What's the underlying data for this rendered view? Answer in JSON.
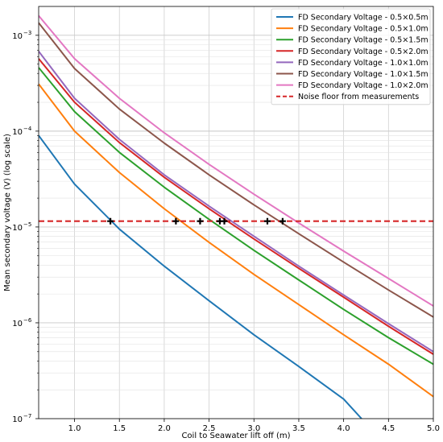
{
  "chart_data": {
    "type": "line",
    "title": "",
    "xlabel": "Coil to Seawater lift off (m)",
    "ylabel": "Mean secondary voltage (V) (log scale)",
    "xlim": [
      0.6,
      5.0
    ],
    "ylim": [
      1e-07,
      0.002
    ],
    "yscale": "log",
    "grid": true,
    "legend_position": "top-right",
    "x_ticks": [
      1.0,
      1.5,
      2.0,
      2.5,
      3.0,
      3.5,
      4.0,
      4.5,
      5.0
    ],
    "x_tick_labels": [
      "1.0",
      "1.5",
      "2.0",
      "2.5",
      "3.0",
      "3.5",
      "4.0",
      "4.5",
      "5.0"
    ],
    "y_ticks": [
      1e-07,
      1e-06,
      1e-05,
      0.0001,
      0.001
    ],
    "y_tick_labels": [
      "10",
      "10",
      "10",
      "10",
      "10"
    ],
    "y_tick_exponents": [
      "−7",
      "−6",
      "−5",
      "−4",
      "−3"
    ],
    "series": [
      {
        "name": "FD Secondary Voltage - 0.5×0.5m",
        "color": "#1f77b4",
        "x": [
          0.6,
          1.0,
          1.5,
          2.0,
          2.5,
          3.0,
          3.5,
          4.0,
          4.2
        ],
        "y": [
          9e-05,
          2.8e-05,
          9.5e-06,
          3.9e-06,
          1.7e-06,
          7.5e-07,
          3.5e-07,
          1.6e-07,
          1e-07
        ]
      },
      {
        "name": "FD Secondary Voltage - 0.5×1.0m",
        "color": "#ff7f0e",
        "x": [
          0.6,
          1.0,
          1.5,
          2.0,
          2.5,
          3.0,
          3.5,
          4.0,
          4.5,
          5.0
        ],
        "y": [
          0.00031,
          0.0001,
          3.7e-05,
          1.55e-05,
          6.9e-06,
          3.2e-06,
          1.55e-06,
          7.5e-07,
          3.7e-07,
          1.7e-07
        ]
      },
      {
        "name": "FD Secondary Voltage - 0.5×1.5m",
        "color": "#2ca02c",
        "x": [
          0.6,
          1.0,
          1.5,
          2.0,
          2.5,
          3.0,
          3.5,
          4.0,
          4.5,
          5.0
        ],
        "y": [
          0.00046,
          0.00016,
          6e-05,
          2.6e-05,
          1.2e-05,
          5.7e-06,
          2.8e-06,
          1.38e-06,
          7e-07,
          3.7e-07
        ]
      },
      {
        "name": "FD Secondary Voltage - 0.5×2.0m",
        "color": "#d62728",
        "x": [
          0.6,
          1.0,
          1.5,
          2.0,
          2.5,
          3.0,
          3.5,
          4.0,
          4.5,
          5.0
        ],
        "y": [
          0.00057,
          0.0002,
          7.6e-05,
          3.3e-05,
          1.55e-05,
          7.5e-06,
          3.7e-06,
          1.85e-06,
          9.2e-07,
          4.7e-07
        ]
      },
      {
        "name": "FD Secondary Voltage - 1.0×1.0m",
        "color": "#9467bd",
        "x": [
          0.6,
          1.0,
          1.5,
          2.0,
          2.5,
          3.0,
          3.5,
          4.0,
          4.5,
          5.0
        ],
        "y": [
          0.00068,
          0.00022,
          8.2e-05,
          3.5e-05,
          1.65e-05,
          8e-06,
          3.9e-06,
          1.95e-06,
          9.8e-07,
          5e-07
        ]
      },
      {
        "name": "FD Secondary Voltage - 1.0×1.5m",
        "color": "#8c564b",
        "x": [
          0.6,
          1.0,
          1.5,
          2.0,
          2.5,
          3.0,
          3.5,
          4.0,
          4.5,
          5.0
        ],
        "y": [
          0.00135,
          0.00045,
          0.00017,
          7.5e-05,
          3.5e-05,
          1.7e-05,
          8.5e-06,
          4.3e-06,
          2.2e-06,
          1.15e-06
        ]
      },
      {
        "name": "FD Secondary Voltage - 1.0×2.0m",
        "color": "#e377c2",
        "x": [
          0.6,
          1.0,
          1.5,
          2.0,
          2.5,
          3.0,
          3.5,
          4.0,
          4.5,
          5.0
        ],
        "y": [
          0.0016,
          0.00057,
          0.00022,
          9.6e-05,
          4.5e-05,
          2.2e-05,
          1.1e-05,
          5.6e-06,
          2.9e-06,
          1.5e-06
        ]
      }
    ],
    "noise_floor": {
      "name": "Noise floor from measurements",
      "color": "#d62728",
      "value": 1.15e-05
    },
    "intersections": [
      {
        "x": 1.4,
        "y": 1.15e-05
      },
      {
        "x": 2.13,
        "y": 1.15e-05
      },
      {
        "x": 2.4,
        "y": 1.15e-05
      },
      {
        "x": 2.62,
        "y": 1.15e-05
      },
      {
        "x": 2.67,
        "y": 1.15e-05
      },
      {
        "x": 3.15,
        "y": 1.15e-05
      },
      {
        "x": 3.32,
        "y": 1.15e-05
      }
    ]
  }
}
